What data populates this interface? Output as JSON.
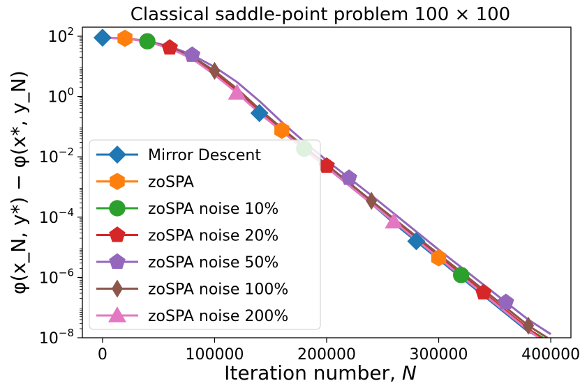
{
  "chart_data": {
    "type": "line",
    "title": "Classical saddle-point problem 100 × 100",
    "xlabel": "Iteration number, N",
    "ylabel": "φ(x_N, y*) − φ(x*, y_N)",
    "yscale": "log",
    "xlim": [
      -18000,
      418000
    ],
    "ylim_exp": [
      -8,
      2.3
    ],
    "x_ticks": [
      0,
      100000,
      200000,
      300000,
      400000
    ],
    "x_tick_labels": [
      "0",
      "100000",
      "200000",
      "300000",
      "400000"
    ],
    "y_tick_exponents": [
      2,
      0,
      -2,
      -4,
      -6,
      -8
    ],
    "y_tick_labels": [
      "10",
      "10",
      "10",
      "10",
      "10",
      "10"
    ],
    "y_tick_superscripts": [
      "2",
      "0",
      "−2",
      "−4",
      "−6",
      "−8"
    ],
    "legend_position": "center-left",
    "series": [
      {
        "name": "Mirror Descent",
        "color": "#1f77b4",
        "marker": "diamond",
        "x": [
          0,
          20000,
          40000,
          60000,
          80000,
          100000,
          120000,
          140000,
          160000,
          180000,
          200000,
          220000,
          240000,
          260000,
          280000,
          300000,
          320000,
          340000,
          360000,
          380000,
          392000
        ],
        "log10_y": [
          1.95,
          1.93,
          1.83,
          1.63,
          1.3,
          0.8,
          0.2,
          -0.55,
          -1.15,
          -1.75,
          -2.35,
          -2.95,
          -3.55,
          -4.2,
          -4.8,
          -5.4,
          -6.0,
          -6.6,
          -7.2,
          -7.8,
          -8.0
        ],
        "marker_x": [
          0,
          140000,
          280000
        ],
        "marker_log10_y": [
          1.95,
          -0.55,
          -4.8
        ]
      },
      {
        "name": "zoSPA",
        "color": "#ff7f0e",
        "marker": "hexagon",
        "x": [
          0,
          20000,
          40000,
          60000,
          80000,
          100000,
          120000,
          140000,
          160000,
          180000,
          200000,
          220000,
          240000,
          260000,
          280000,
          300000,
          320000,
          340000,
          360000,
          380000,
          390000
        ],
        "log10_y": [
          1.95,
          1.93,
          1.83,
          1.62,
          1.28,
          0.78,
          0.18,
          -0.5,
          -1.12,
          -1.73,
          -2.33,
          -2.93,
          -3.53,
          -4.13,
          -4.73,
          -5.35,
          -5.95,
          -6.55,
          -7.15,
          -7.75,
          -8.0
        ],
        "marker_x": [
          20000,
          160000,
          300000
        ],
        "marker_log10_y": [
          1.93,
          -1.12,
          -5.35
        ]
      },
      {
        "name": "zoSPA noise 10%",
        "color": "#2ca02c",
        "marker": "circle",
        "x": [
          0,
          20000,
          40000,
          60000,
          80000,
          100000,
          120000,
          140000,
          160000,
          180000,
          200000,
          220000,
          240000,
          260000,
          280000,
          300000,
          320000,
          340000,
          360000,
          380000,
          393000
        ],
        "log10_y": [
          1.95,
          1.93,
          1.83,
          1.62,
          1.28,
          0.78,
          0.18,
          -0.5,
          -1.12,
          -1.73,
          -2.33,
          -2.92,
          -3.52,
          -4.12,
          -4.72,
          -5.32,
          -5.92,
          -6.52,
          -7.12,
          -7.72,
          -8.0
        ],
        "marker_x": [
          40000,
          180000,
          320000
        ],
        "marker_log10_y": [
          1.83,
          -1.73,
          -5.92
        ]
      },
      {
        "name": "zoSPA noise 20%",
        "color": "#d62728",
        "marker": "pentagon",
        "x": [
          0,
          20000,
          40000,
          60000,
          80000,
          100000,
          120000,
          140000,
          160000,
          180000,
          200000,
          220000,
          240000,
          260000,
          280000,
          300000,
          320000,
          340000,
          360000,
          380000,
          391000
        ],
        "log10_y": [
          1.95,
          1.93,
          1.83,
          1.62,
          1.28,
          0.78,
          0.2,
          -0.48,
          -1.1,
          -1.7,
          -2.3,
          -2.9,
          -3.5,
          -4.1,
          -4.7,
          -5.3,
          -5.9,
          -6.5,
          -7.1,
          -7.7,
          -8.0
        ],
        "marker_x": [
          60000,
          200000,
          340000
        ],
        "marker_log10_y": [
          1.62,
          -2.3,
          -6.5
        ]
      },
      {
        "name": "zoSPA noise 50%",
        "color": "#9467bd",
        "marker": "pentagon",
        "x": [
          0,
          20000,
          40000,
          60000,
          80000,
          100000,
          120000,
          140000,
          160000,
          180000,
          200000,
          220000,
          240000,
          260000,
          280000,
          300000,
          320000,
          340000,
          360000,
          380000,
          400000
        ],
        "log10_y": [
          1.95,
          1.93,
          1.84,
          1.66,
          1.38,
          0.98,
          0.48,
          -0.15,
          -0.85,
          -1.5,
          -2.12,
          -2.7,
          -3.28,
          -3.88,
          -4.48,
          -5.08,
          -5.66,
          -6.24,
          -6.82,
          -7.4,
          -7.88
        ],
        "marker_x": [
          80000,
          220000,
          360000
        ],
        "marker_log10_y": [
          1.38,
          -2.7,
          -6.82
        ]
      },
      {
        "name": "zoSPA noise 100%",
        "color": "#8c564b",
        "marker": "thin-diamond",
        "x": [
          0,
          20000,
          40000,
          60000,
          80000,
          100000,
          120000,
          140000,
          160000,
          180000,
          200000,
          220000,
          240000,
          260000,
          280000,
          300000,
          320000,
          340000,
          360000,
          380000,
          397000
        ],
        "log10_y": [
          1.95,
          1.93,
          1.83,
          1.64,
          1.32,
          0.85,
          0.26,
          -0.42,
          -1.05,
          -1.66,
          -2.26,
          -2.86,
          -3.46,
          -4.05,
          -4.64,
          -5.23,
          -5.82,
          -6.41,
          -7.0,
          -7.6,
          -8.0
        ],
        "marker_x": [
          100000,
          240000,
          380000
        ],
        "marker_log10_y": [
          0.85,
          -3.46,
          -7.6
        ]
      },
      {
        "name": "zoSPA noise 200%",
        "color": "#e377c2",
        "marker": "triangle",
        "x": [
          0,
          20000,
          40000,
          60000,
          80000,
          100000,
          120000,
          140000,
          160000,
          180000,
          200000,
          220000,
          240000,
          260000,
          280000,
          300000,
          320000,
          340000,
          360000,
          380000,
          389000
        ],
        "log10_y": [
          1.95,
          1.93,
          1.82,
          1.6,
          1.25,
          0.72,
          0.12,
          -0.55,
          -1.15,
          -1.75,
          -2.35,
          -2.95,
          -3.55,
          -4.15,
          -4.75,
          -5.35,
          -5.95,
          -6.55,
          -7.15,
          -7.75,
          -8.0
        ],
        "marker_x": [
          120000,
          260000
        ],
        "marker_log10_y": [
          0.12,
          -4.15
        ]
      }
    ]
  }
}
